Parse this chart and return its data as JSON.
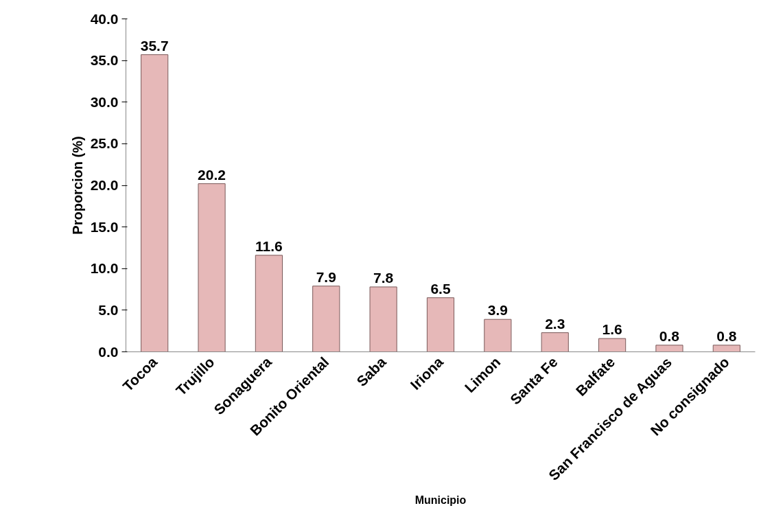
{
  "chart_data": {
    "type": "bar",
    "xlabel": "Municipio",
    "ylabel": "Proporcion (%)",
    "categories": [
      "Tocoa",
      "Trujillo",
      "Sonaguera",
      "Bonito Oriental",
      "Saba",
      "Iriona",
      "Limon",
      "Santa Fe",
      "Balfate",
      "San Francisco de Aguas",
      "No consignado"
    ],
    "values": [
      35.7,
      20.2,
      11.6,
      7.9,
      7.8,
      6.5,
      3.9,
      2.3,
      1.6,
      0.8,
      0.8
    ],
    "color": "#e6b8b8",
    "ylim": [
      0,
      40
    ],
    "yticks": [
      {
        "value": 0,
        "label": "0.0"
      },
      {
        "value": 5,
        "label": "5.0"
      },
      {
        "value": 10,
        "label": "10.0"
      },
      {
        "value": 15,
        "label": "15.0"
      },
      {
        "value": 20,
        "label": "20.0"
      },
      {
        "value": 25,
        "label": "25.0"
      },
      {
        "value": 30,
        "label": "30.0"
      },
      {
        "value": 35,
        "label": "35.0"
      },
      {
        "value": 40,
        "label": "40.0"
      }
    ],
    "grid": false,
    "data_labels": true
  }
}
